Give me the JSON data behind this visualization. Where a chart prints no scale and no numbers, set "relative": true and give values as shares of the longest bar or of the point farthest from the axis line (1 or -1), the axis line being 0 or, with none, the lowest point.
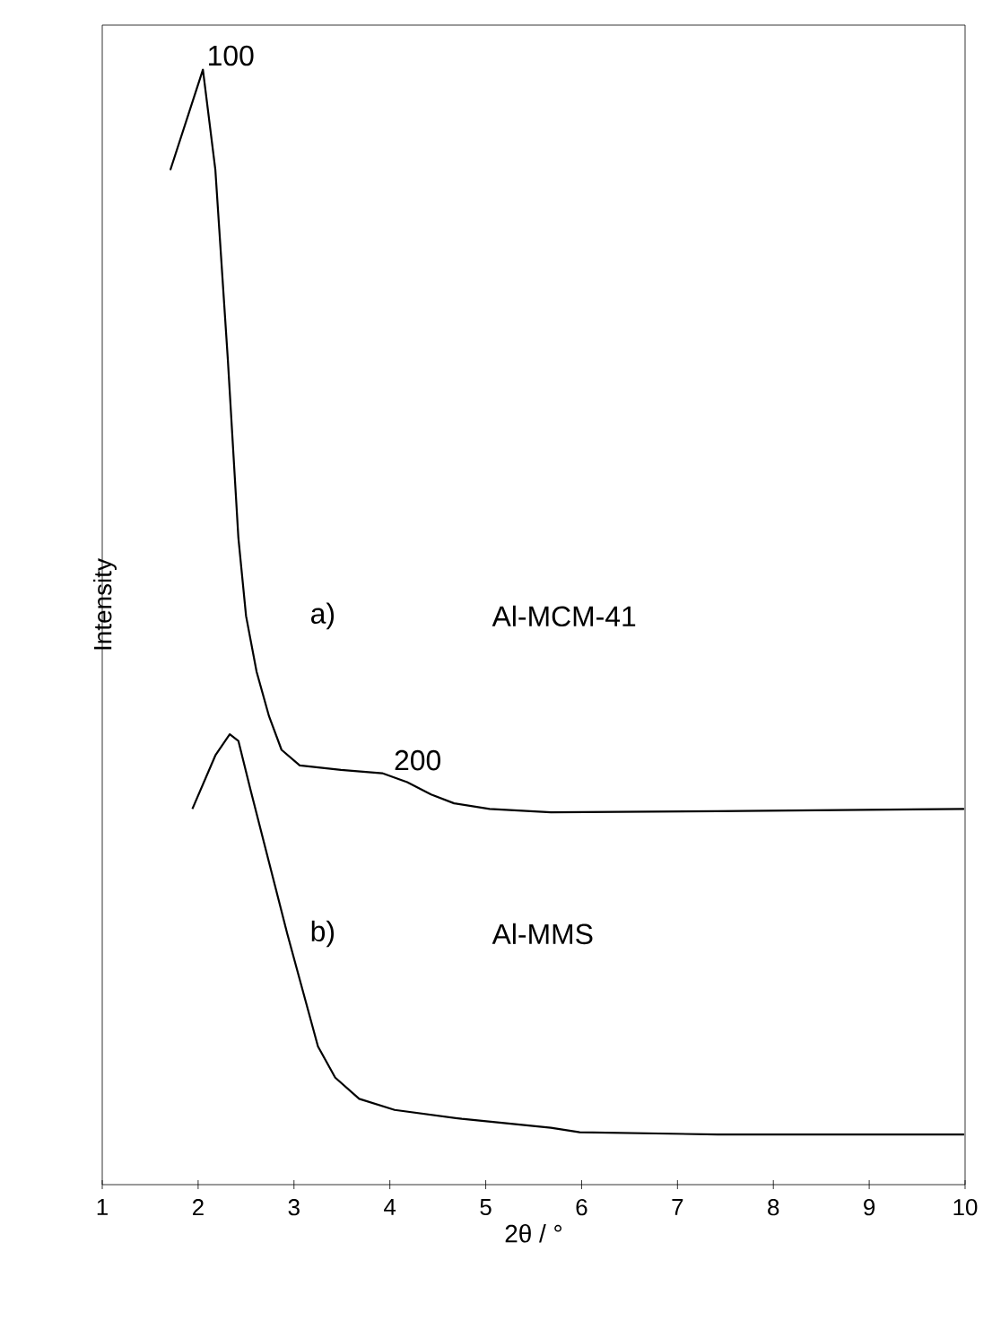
{
  "chart_data": {
    "type": "line",
    "xlabel": "2θ / °",
    "ylabel": "Intensity",
    "relative": true,
    "xlim": [
      1,
      10
    ],
    "xticks": [
      1,
      2,
      3,
      4,
      5,
      6,
      7,
      8,
      9,
      10
    ],
    "series": [
      {
        "name": "a)",
        "color": "#000000",
        "x": [
          1.71,
          2.05,
          2.18,
          2.31,
          2.42,
          2.5,
          2.61,
          2.74,
          2.87,
          3.06,
          3.49,
          3.92,
          4.18,
          4.43,
          4.67,
          5.04,
          5.68,
          7.42,
          9.99
        ],
        "values": [
          0.91,
          1.0,
          0.91,
          0.74,
          0.58,
          0.51,
          0.46,
          0.42,
          0.39,
          0.376,
          0.372,
          0.369,
          0.361,
          0.35,
          0.342,
          0.337,
          0.334,
          0.335,
          0.337
        ]
      },
      {
        "name": "b)",
        "color": "#000000",
        "x": [
          1.94,
          2.18,
          2.33,
          2.42,
          2.55,
          2.74,
          2.93,
          3.12,
          3.25,
          3.43,
          3.68,
          4.05,
          4.75,
          5.68,
          5.98,
          7.42,
          9.99
        ],
        "values": [
          0.337,
          0.385,
          0.404,
          0.398,
          0.353,
          0.289,
          0.225,
          0.165,
          0.124,
          0.096,
          0.077,
          0.067,
          0.059,
          0.051,
          0.047,
          0.045,
          0.045
        ]
      }
    ],
    "annotations": [
      {
        "text": "100",
        "x": 2.05,
        "y": 1.0
      },
      {
        "text": "200",
        "x": 4.0,
        "y": 0.368
      },
      "Al-MCM-41",
      "Al-MMS"
    ],
    "legend": false,
    "grid": false,
    "marker": "none",
    "line_style": "solid"
  }
}
